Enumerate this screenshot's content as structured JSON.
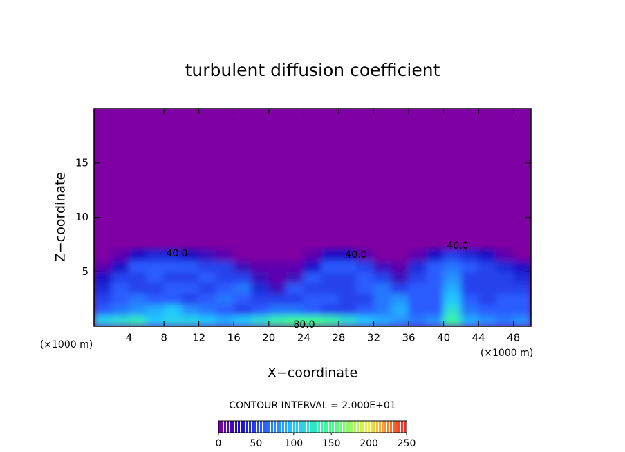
{
  "chart_data": {
    "type": "contour",
    "title": "turbulent diffusion coefficient",
    "x_label": "X−coordinate",
    "y_label": "Z−coordinate",
    "x_unit": "(×1000 m)",
    "y_unit": "(×1000 m)",
    "xlim": [
      0,
      50
    ],
    "ylim": [
      0,
      20
    ],
    "xticks": [
      4,
      8,
      12,
      16,
      20,
      24,
      28,
      32,
      36,
      40,
      44,
      48
    ],
    "yticks": [
      5,
      10,
      15
    ],
    "x": [
      1,
      3,
      5,
      7,
      9,
      11,
      13,
      15,
      17,
      19,
      21,
      23,
      25,
      27,
      29,
      31,
      33,
      35,
      37,
      39,
      41,
      43,
      45,
      47,
      49
    ],
    "y": [
      0.5,
      1.5,
      2.5,
      3.5,
      4.5,
      5.5,
      6.5
    ],
    "z": [
      [
        110,
        120,
        130,
        100,
        110,
        110,
        100,
        90,
        100,
        120,
        140,
        150,
        150,
        140,
        120,
        100,
        90,
        80,
        70,
        80,
        140,
        90,
        80,
        70,
        80
      ],
      [
        60,
        70,
        80,
        90,
        100,
        80,
        70,
        60,
        50,
        60,
        70,
        70,
        60,
        50,
        50,
        60,
        70,
        90,
        60,
        60,
        120,
        70,
        60,
        60,
        60
      ],
      [
        50,
        60,
        70,
        60,
        60,
        50,
        60,
        70,
        60,
        50,
        50,
        50,
        60,
        60,
        50,
        50,
        70,
        80,
        60,
        60,
        100,
        60,
        50,
        60,
        60
      ],
      [
        40,
        60,
        50,
        50,
        60,
        60,
        50,
        60,
        70,
        40,
        20,
        60,
        50,
        50,
        50,
        60,
        70,
        50,
        60,
        60,
        90,
        50,
        50,
        50,
        50
      ],
      [
        30,
        50,
        50,
        60,
        50,
        50,
        60,
        50,
        50,
        20,
        10,
        20,
        60,
        50,
        50,
        60,
        50,
        20,
        50,
        60,
        80,
        50,
        50,
        50,
        40
      ],
      [
        10,
        30,
        60,
        60,
        60,
        60,
        50,
        50,
        20,
        10,
        10,
        10,
        30,
        60,
        60,
        50,
        20,
        10,
        40,
        60,
        70,
        60,
        50,
        40,
        30
      ],
      [
        0,
        10,
        30,
        40,
        40,
        30,
        20,
        10,
        0,
        0,
        0,
        0,
        10,
        30,
        30,
        10,
        0,
        0,
        10,
        30,
        50,
        40,
        30,
        10,
        0
      ]
    ],
    "background_color": "#7f00a3",
    "colorscale": [
      [
        0,
        "#7f00a3"
      ],
      [
        30,
        "#1a10c8"
      ],
      [
        60,
        "#2a5cff"
      ],
      [
        100,
        "#22c8ff"
      ],
      [
        150,
        "#40ff90"
      ],
      [
        200,
        "#f0f040"
      ],
      [
        250,
        "#ff2020"
      ]
    ],
    "contour_labels": [
      "40.0",
      "40.0",
      "40.0",
      "80.0"
    ],
    "contour_interval": "CONTOUR INTERVAL = 2.000E+01",
    "colorbar_ticks": [
      0,
      50,
      100,
      150,
      200,
      250
    ]
  }
}
